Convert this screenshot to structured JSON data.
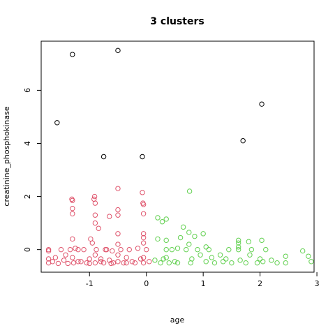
{
  "chart_data": {
    "type": "scatter",
    "title": "3  clusters",
    "xlabel": "age",
    "ylabel": "creatinine_phosphokinase",
    "xlim": [
      -1.85,
      2.95
    ],
    "ylim": [
      -0.85,
      7.85
    ],
    "xticks": [
      -1,
      0,
      1,
      2,
      3
    ],
    "yticks": [
      0,
      2,
      4,
      6
    ],
    "series": [
      {
        "color": "#000000",
        "points": [
          [
            -1.3,
            7.35
          ],
          [
            -0.5,
            7.5
          ],
          [
            -1.57,
            4.78
          ],
          [
            2.03,
            5.48
          ],
          [
            1.7,
            4.1
          ],
          [
            -0.75,
            3.5
          ],
          [
            -0.07,
            3.5
          ]
        ]
      },
      {
        "color": "#DF536B",
        "points": [
          [
            -1.72,
            -0.5
          ],
          [
            -1.72,
            -0.35
          ],
          [
            -1.72,
            0.0
          ],
          [
            -1.72,
            -0.05
          ],
          [
            -1.65,
            -0.45
          ],
          [
            -1.6,
            -0.3
          ],
          [
            -1.55,
            -0.52
          ],
          [
            -1.5,
            0.0
          ],
          [
            -1.45,
            -0.4
          ],
          [
            -1.42,
            -0.2
          ],
          [
            -1.38,
            -0.52
          ],
          [
            -1.34,
            0.0
          ],
          [
            -1.31,
            1.9
          ],
          [
            -1.3,
            1.55
          ],
          [
            -1.3,
            1.35
          ],
          [
            -1.3,
            0.4
          ],
          [
            -1.3,
            -0.3
          ],
          [
            -1.28,
            -0.5
          ],
          [
            -1.3,
            1.85
          ],
          [
            -1.25,
            0.05
          ],
          [
            -1.2,
            0.0
          ],
          [
            -1.15,
            -0.45
          ],
          [
            -1.1,
            0.0
          ],
          [
            -1.05,
            -0.5
          ],
          [
            -1.0,
            -0.35
          ],
          [
            -0.98,
            0.4
          ],
          [
            -0.95,
            0.25
          ],
          [
            -0.92,
            1.9
          ],
          [
            -0.91,
            2.0
          ],
          [
            -0.9,
            1.75
          ],
          [
            -0.9,
            1.3
          ],
          [
            -0.9,
            1.0
          ],
          [
            -0.88,
            0.0
          ],
          [
            -0.9,
            -0.2
          ],
          [
            -0.9,
            -0.5
          ],
          [
            -0.84,
            0.8
          ],
          [
            -0.8,
            -0.35
          ],
          [
            -0.75,
            -0.5
          ],
          [
            -0.72,
            0.0
          ],
          [
            -0.7,
            0.0
          ],
          [
            -0.65,
            -0.4
          ],
          [
            -0.65,
            1.25
          ],
          [
            -0.6,
            -0.05
          ],
          [
            -0.58,
            -0.5
          ],
          [
            -0.5,
            2.3
          ],
          [
            -0.5,
            1.5
          ],
          [
            -0.5,
            1.3
          ],
          [
            -0.5,
            0.6
          ],
          [
            -0.5,
            0.2
          ],
          [
            -0.5,
            -0.2
          ],
          [
            -0.5,
            -0.45
          ],
          [
            -0.45,
            0.0
          ],
          [
            -0.4,
            -0.5
          ],
          [
            -0.35,
            -0.3
          ],
          [
            -0.3,
            0.0
          ],
          [
            -0.25,
            -0.45
          ],
          [
            -0.2,
            -0.5
          ],
          [
            -0.15,
            0.05
          ],
          [
            -0.1,
            -0.35
          ],
          [
            -0.07,
            2.15
          ],
          [
            -0.06,
            1.75
          ],
          [
            -0.05,
            1.35
          ],
          [
            -0.05,
            1.7
          ],
          [
            -0.05,
            0.6
          ],
          [
            -0.05,
            0.45
          ],
          [
            -0.05,
            0.25
          ],
          [
            -0.05,
            -0.3
          ],
          [
            -0.05,
            -0.5
          ],
          [
            0.0,
            0.0
          ],
          [
            0.05,
            -0.45
          ],
          [
            -1.2,
            -0.45
          ],
          [
            -1.0,
            -0.52
          ],
          [
            -0.8,
            -0.45
          ],
          [
            -0.62,
            -0.52
          ],
          [
            -0.35,
            -0.5
          ]
        ]
      },
      {
        "color": "#61D04F",
        "points": [
          [
            0.15,
            -0.4
          ],
          [
            0.2,
            0.4
          ],
          [
            0.2,
            1.2
          ],
          [
            0.25,
            -0.5
          ],
          [
            0.28,
            1.05
          ],
          [
            0.35,
            1.15
          ],
          [
            0.35,
            0.35
          ],
          [
            0.35,
            0.0
          ],
          [
            0.35,
            -0.3
          ],
          [
            0.4,
            -0.5
          ],
          [
            0.45,
            0.0
          ],
          [
            0.5,
            -0.45
          ],
          [
            0.55,
            0.05
          ],
          [
            0.6,
            0.45
          ],
          [
            0.65,
            0.85
          ],
          [
            0.7,
            0.0
          ],
          [
            0.75,
            0.2
          ],
          [
            0.75,
            0.65
          ],
          [
            0.76,
            2.2
          ],
          [
            0.78,
            -0.5
          ],
          [
            0.8,
            -0.35
          ],
          [
            0.85,
            0.5
          ],
          [
            0.9,
            0.0
          ],
          [
            0.95,
            -0.2
          ],
          [
            1.0,
            0.6
          ],
          [
            1.05,
            -0.45
          ],
          [
            1.1,
            0.0
          ],
          [
            1.15,
            -0.3
          ],
          [
            1.2,
            -0.5
          ],
          [
            1.3,
            -0.2
          ],
          [
            1.35,
            -0.45
          ],
          [
            1.45,
            0.0
          ],
          [
            1.5,
            -0.5
          ],
          [
            1.62,
            0.35
          ],
          [
            1.62,
            0.25
          ],
          [
            1.62,
            0.1
          ],
          [
            1.62,
            0.0
          ],
          [
            1.65,
            -0.4
          ],
          [
            1.75,
            -0.5
          ],
          [
            1.8,
            0.3
          ],
          [
            1.82,
            -0.2
          ],
          [
            1.85,
            0.0
          ],
          [
            1.95,
            -0.5
          ],
          [
            2.03,
            0.35
          ],
          [
            2.05,
            -0.45
          ],
          [
            2.1,
            0.0
          ],
          [
            2.2,
            -0.4
          ],
          [
            2.3,
            -0.5
          ],
          [
            2.45,
            -0.25
          ],
          [
            2.45,
            -0.5
          ],
          [
            2.75,
            -0.05
          ],
          [
            2.85,
            -0.25
          ],
          [
            2.9,
            -0.45
          ],
          [
            0.55,
            -0.5
          ],
          [
            0.3,
            -0.35
          ],
          [
            1.05,
            0.1
          ],
          [
            1.4,
            -0.35
          ],
          [
            2.0,
            -0.35
          ]
        ]
      }
    ]
  }
}
